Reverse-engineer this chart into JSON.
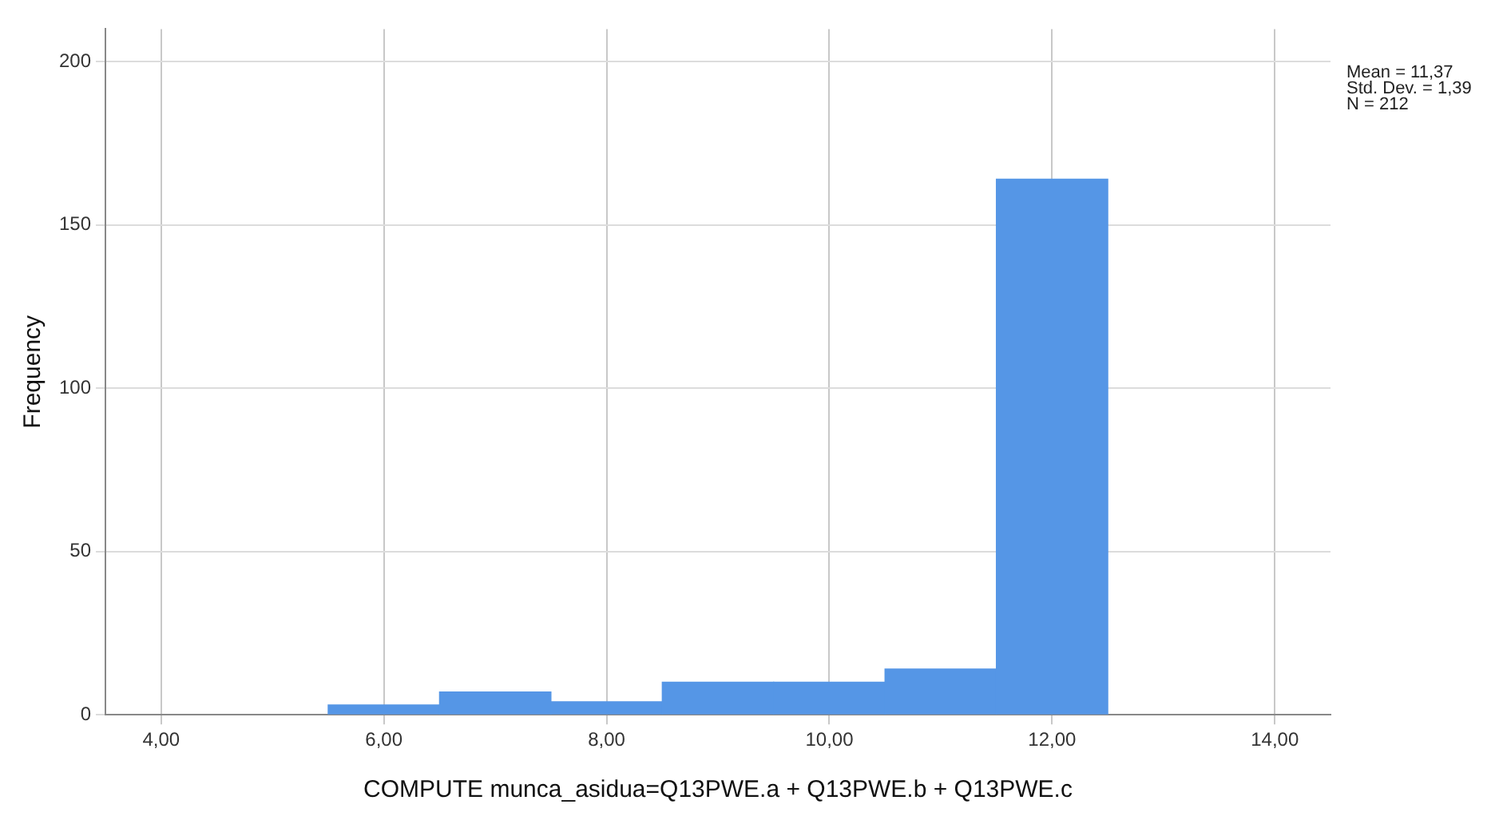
{
  "chart_data": {
    "type": "histogram",
    "xlabel": "COMPUTE munca_asidua=Q13PWE.a + Q13PWE.b + Q13PWE.c",
    "ylabel": "Frequency",
    "bins": [
      5.5,
      6.5,
      7.5,
      8.5,
      9.5,
      10.5,
      11.5,
      12.5
    ],
    "values": [
      3,
      7,
      4,
      10,
      10,
      14,
      164
    ],
    "color": "#5596e6",
    "xlim": [
      3.5,
      14.5
    ],
    "xticks": [
      {
        "value": 4,
        "label": "4,00"
      },
      {
        "value": 6,
        "label": "6,00"
      },
      {
        "value": 8,
        "label": "8,00"
      },
      {
        "value": 10,
        "label": "10,00"
      },
      {
        "value": 12,
        "label": "12,00"
      },
      {
        "value": 14,
        "label": "14,00"
      }
    ],
    "ylim": [
      0,
      210
    ],
    "yticks": [
      0,
      50,
      100,
      150,
      200
    ],
    "grid": true,
    "annotations": [
      "Mean = 11,37",
      "Std. Dev. = 1,39",
      "N = 212"
    ]
  }
}
